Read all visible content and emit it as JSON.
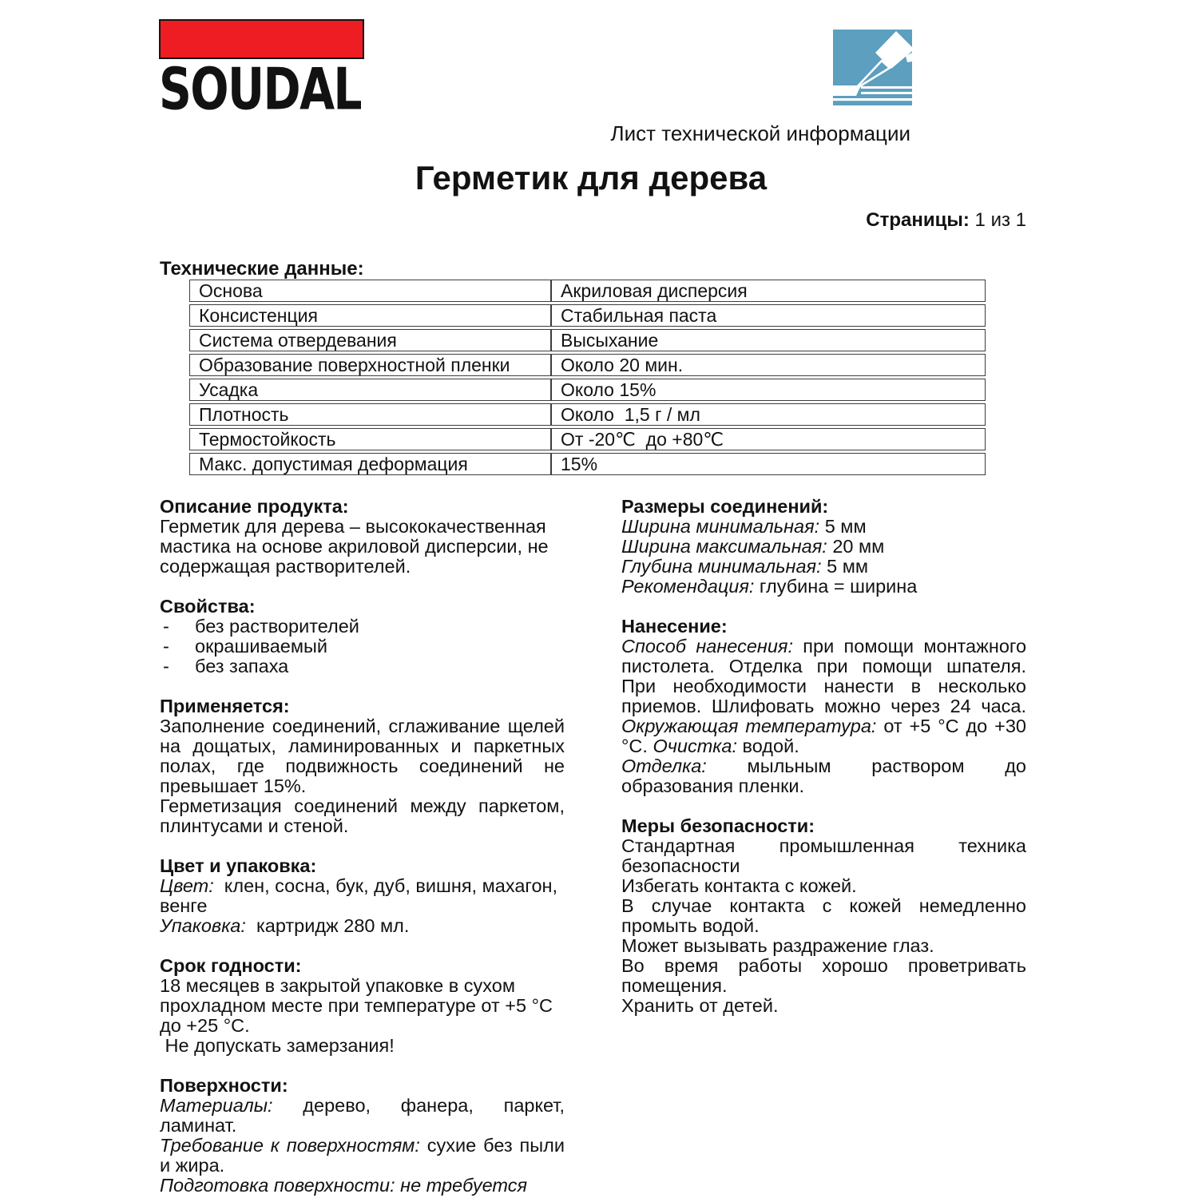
{
  "header": {
    "logo_text": "SOUDAL",
    "logo_bar_color": "#ee1c23",
    "icon": "sealant-gun-icon",
    "icon_color": "#5c9fbf",
    "doc_type_label": "Лист технической информации",
    "title": "Герметик для дерева",
    "pages_label": "Страницы:",
    "pages_value": " 1 из 1"
  },
  "tech_table": {
    "heading": "Технические данные:",
    "rows": [
      [
        "Основа",
        "Акриловая дисперсия"
      ],
      [
        "Консистенция",
        "Стабильная паста"
      ],
      [
        "Система отвердевания",
        "Высыхание"
      ],
      [
        "Образование поверхностной пленки",
        "Около 20 мин."
      ],
      [
        "Усадка",
        "Около 15%"
      ],
      [
        "Плотность",
        "Около  1,5 г / мл"
      ],
      [
        "Термостойкость",
        "От -20℃  до +80℃"
      ],
      [
        "Макс. допустимая деформация",
        "15%"
      ]
    ]
  },
  "columns": {
    "left": [
      {
        "heading": "Описание продукта:",
        "blocks": [
          {
            "type": "p",
            "runs": [
              {
                "t": "Герметик для дерева – высококачественная мастика на основе акриловой дисперсии, не содержащая растворителей."
              }
            ]
          }
        ]
      },
      {
        "heading": "Свойства:",
        "blocks": [
          {
            "type": "dash",
            "runs": [
              {
                "t": "без растворителей"
              }
            ]
          },
          {
            "type": "dash",
            "runs": [
              {
                "t": "окрашиваемый"
              }
            ]
          },
          {
            "type": "dash",
            "runs": [
              {
                "t": "без запаха"
              }
            ]
          }
        ]
      },
      {
        "heading": "Применяется:",
        "blocks": [
          {
            "type": "p",
            "align": "justify",
            "runs": [
              {
                "t": "Заполнение соединений, сглаживание щелей на дощатых, ламинированных и паркетных полах, где подвижность соединений не превышает 15%."
              }
            ]
          },
          {
            "type": "p",
            "align": "justify",
            "runs": [
              {
                "t": "Герметизация соединений между паркетом, плинтусами и стеной."
              }
            ]
          }
        ]
      },
      {
        "heading": "Цвет и упаковка:",
        "blocks": [
          {
            "type": "p",
            "runs": [
              {
                "t": "Цвет:",
                "i": true
              },
              {
                "t": "  клен, сосна, бук, дуб, вишня, махагон, венге"
              }
            ]
          },
          {
            "type": "p",
            "runs": [
              {
                "t": "Упаковка:",
                "i": true
              },
              {
                "t": "  картридж 280 мл."
              }
            ]
          }
        ]
      },
      {
        "heading": "Срок годности:",
        "blocks": [
          {
            "type": "p",
            "runs": [
              {
                "t": "18 месяцев в закрытой упаковке в сухом прохладном месте при температуре от +5 °C до +25 °C."
              }
            ]
          },
          {
            "type": "p",
            "runs": [
              {
                "t": " Не допускать замерзания!"
              }
            ]
          }
        ]
      },
      {
        "heading": "Поверхности:",
        "blocks": [
          {
            "type": "p",
            "align": "justify",
            "runs": [
              {
                "t": "Материалы:",
                "i": true
              },
              {
                "t": " дерево, фанера, паркет, ламинат."
              }
            ]
          },
          {
            "type": "p",
            "align": "justify",
            "runs": [
              {
                "t": "Требование к поверхностям:",
                "i": true
              },
              {
                "t": " сухие без пыли и жира."
              }
            ]
          },
          {
            "type": "p",
            "runs": [
              {
                "t": "Подготовка поверхности: не требуется",
                "i": true
              }
            ]
          }
        ]
      }
    ],
    "right": [
      {
        "heading": "Размеры соединений:",
        "blocks": [
          {
            "type": "p",
            "runs": [
              {
                "t": "Ширина минимальная:",
                "i": true
              },
              {
                "t": " 5 мм"
              }
            ]
          },
          {
            "type": "p",
            "runs": [
              {
                "t": "Ширина максимальная:",
                "i": true
              },
              {
                "t": " 20 мм"
              }
            ]
          },
          {
            "type": "p",
            "runs": [
              {
                "t": "Глубина минимальная:",
                "i": true
              },
              {
                "t": " 5 мм"
              }
            ]
          },
          {
            "type": "p",
            "runs": [
              {
                "t": "Рекомендация:",
                "i": true
              },
              {
                "t": " глубина = ширина"
              }
            ]
          }
        ]
      },
      {
        "heading": "Нанесение:",
        "blocks": [
          {
            "type": "p",
            "align": "justify",
            "runs": [
              {
                "t": "Способ нанесения:",
                "i": true
              },
              {
                "t": " при помощи монтажного пистолета. Отделка при помощи шпателя. При необходимости нанести в несколько приемов. Шлифовать можно через 24 часа. "
              },
              {
                "t": "Окружающая температура:",
                "i": true
              },
              {
                "t": " от +5 °C до +30 °C. "
              },
              {
                "t": "Очистка:",
                "i": true
              },
              {
                "t": " водой."
              }
            ]
          },
          {
            "type": "p",
            "align": "justify",
            "runs": [
              {
                "t": "Отделка:",
                "i": true
              },
              {
                "t": " мыльным раствором до образования пленки."
              }
            ]
          }
        ]
      },
      {
        "heading": "Меры безопасности:",
        "blocks": [
          {
            "type": "p",
            "align": "justify",
            "runs": [
              {
                "t": "Стандартная промышленная техника безопасности"
              }
            ]
          },
          {
            "type": "p",
            "runs": [
              {
                "t": "Избегать контакта с кожей."
              }
            ]
          },
          {
            "type": "p",
            "align": "justify",
            "runs": [
              {
                "t": "В случае контакта с кожей немедленно промыть водой."
              }
            ]
          },
          {
            "type": "p",
            "runs": [
              {
                "t": "Может вызывать раздражение глаз."
              }
            ]
          },
          {
            "type": "p",
            "align": "justify",
            "runs": [
              {
                "t": "Во время работы хорошо проветривать помещения."
              }
            ]
          },
          {
            "type": "p",
            "runs": [
              {
                "t": "Хранить от детей."
              }
            ]
          }
        ]
      }
    ]
  }
}
